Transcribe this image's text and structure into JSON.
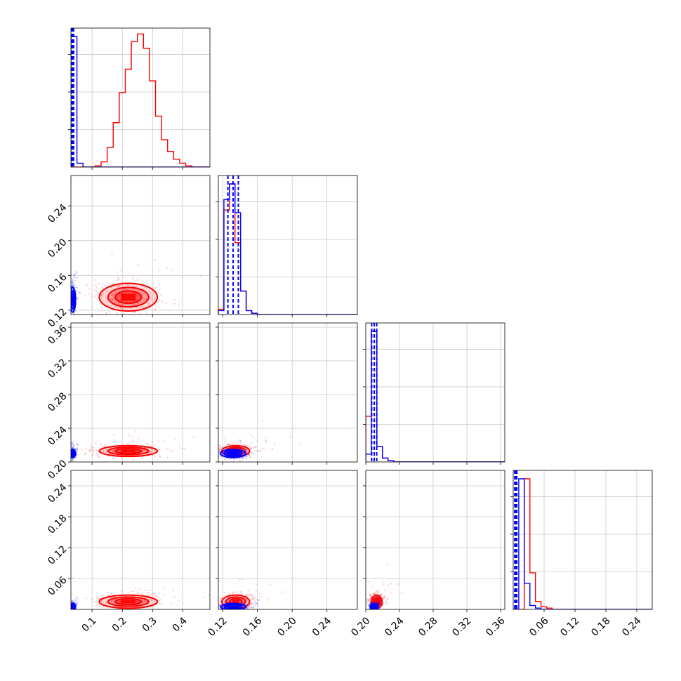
{
  "chart_data": {
    "type": "corner",
    "title": "",
    "parameters": [
      {
        "ticks": [
          "0.1",
          "0.2",
          "0.3",
          "0.4"
        ],
        "range": [
          0.03,
          0.49
        ]
      },
      {
        "ticks": [
          "0.12",
          "0.16",
          "0.20",
          "0.24"
        ],
        "range": [
          0.115,
          0.275
        ]
      },
      {
        "ticks": [
          "0.20",
          "0.24",
          "0.28",
          "0.32",
          "0.36"
        ],
        "range": [
          0.2,
          0.365
        ]
      },
      {
        "ticks": [
          "0.06",
          "0.12",
          "0.18",
          "0.24"
        ],
        "range": [
          0.0,
          0.27
        ]
      }
    ],
    "grid": true,
    "series": [
      {
        "color": "#ff0000",
        "hist": [
          {
            "edges": [
              0.03,
              0.49
            ],
            "counts": [
              0,
              0,
              0,
              0,
              1,
              4,
              15,
              34,
              57,
              75,
              96,
              102,
              91,
              66,
              39,
              21,
              12,
              6,
              3,
              1,
              0,
              0,
              0
            ]
          },
          {
            "edges": [
              0.115,
              0.275
            ],
            "counts": [
              4,
              80,
              100,
              55,
              18,
              3,
              1,
              0,
              0,
              0,
              0,
              0,
              0,
              0,
              0,
              0,
              0,
              0,
              0,
              0,
              0,
              0,
              0,
              0,
              0
            ]
          },
          {
            "edges": [
              0.2,
              0.365
            ],
            "counts": [
              35,
              100,
              12,
              3,
              1,
              0,
              0,
              0,
              0,
              0,
              0,
              0,
              0,
              0,
              0,
              0,
              0,
              0,
              0,
              0,
              0,
              0,
              0,
              0,
              0
            ]
          },
          {
            "edges": [
              0.0,
              0.27
            ],
            "counts": [
              0,
              0,
              100,
              28,
              6,
              2,
              1,
              0,
              0,
              0,
              0,
              0,
              0,
              0,
              0,
              0,
              0,
              0,
              0,
              0,
              0,
              0,
              0,
              0,
              0
            ]
          }
        ],
        "quantiles": []
      },
      {
        "color": "#0000ff",
        "hist": [
          {
            "edges": [
              0.03,
              0.49
            ],
            "counts": [
              100,
              3,
              0,
              0,
              0,
              0,
              0,
              0,
              0,
              0,
              0,
              0,
              0,
              0,
              0,
              0,
              0,
              0,
              0,
              0,
              0,
              0,
              0
            ]
          },
          {
            "edges": [
              0.115,
              0.275
            ],
            "counts": [
              3,
              88,
              100,
              78,
              18,
              3,
              1,
              0,
              0,
              0,
              0,
              0,
              0,
              0,
              0,
              0,
              0,
              0,
              0,
              0,
              0,
              0,
              0,
              0,
              0
            ]
          },
          {
            "edges": [
              0.2,
              0.365
            ],
            "counts": [
              6,
              100,
              12,
              3,
              1,
              0,
              0,
              0,
              0,
              0,
              0,
              0,
              0,
              0,
              0,
              0,
              0,
              0,
              0,
              0,
              0,
              0,
              0,
              0,
              0
            ]
          },
          {
            "edges": [
              0.0,
              0.27
            ],
            "counts": [
              0,
              100,
              20,
              3,
              1,
              0,
              0,
              0,
              0,
              0,
              0,
              0,
              0,
              0,
              0,
              0,
              0,
              0,
              0,
              0,
              0,
              0,
              0,
              0,
              0
            ]
          }
        ],
        "quantiles": [
          [
            0.033,
            0.036,
            0.039
          ],
          [
            0.126,
            0.132,
            0.138
          ],
          [
            0.207,
            0.21,
            0.213
          ],
          [
            0.003,
            0.005,
            0.007
          ]
        ]
      }
    ],
    "peaks": [
      {
        "color": "#ff0000",
        "center": [
          0.22,
          0.135,
          0.213,
          0.015
        ],
        "spread": [
          0.06,
          0.01,
          0.004,
          0.008
        ]
      },
      {
        "color": "#0000ff",
        "center": [
          0.036,
          0.132,
          0.21,
          0.005
        ],
        "spread": [
          0.005,
          0.009,
          0.003,
          0.004
        ]
      }
    ]
  }
}
